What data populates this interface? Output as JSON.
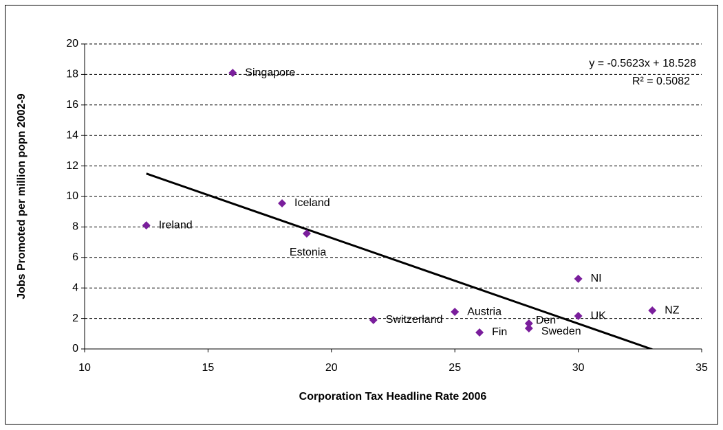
{
  "chart_data": {
    "type": "scatter",
    "xlabel": "Corporation Tax Headline Rate 2006",
    "ylabel": "Jobs Promoted per million popn 2002-9",
    "x": [
      16,
      18,
      12.5,
      19,
      21.7,
      25,
      26,
      28,
      28,
      30,
      30,
      33
    ],
    "values": [
      18.1,
      9.55,
      8.1,
      7.57,
      1.9,
      2.43,
      1.08,
      1.67,
      1.35,
      4.6,
      2.16,
      2.52
    ],
    "point_labels": [
      "Singapore",
      "Iceland",
      "Ireland",
      "Estonia",
      "Switzerland",
      "Austria",
      "Fin",
      "Den",
      "Sweden",
      "NI",
      "UK",
      "NZ"
    ],
    "color": "#7a1e9c",
    "xlim": [
      10,
      35
    ],
    "xticks": [
      10,
      15,
      20,
      25,
      30,
      35
    ],
    "ylim": [
      0,
      20
    ],
    "yticks": [
      0,
      2,
      4,
      6,
      8,
      10,
      12,
      14,
      16,
      18,
      20
    ],
    "grid": true,
    "trendline": {
      "slope": -0.5623,
      "intercept": 18.528,
      "equation": "y = -0.5623x + 18.528",
      "r2": 0.5082,
      "r2_label": "R² = 0.5082"
    }
  }
}
